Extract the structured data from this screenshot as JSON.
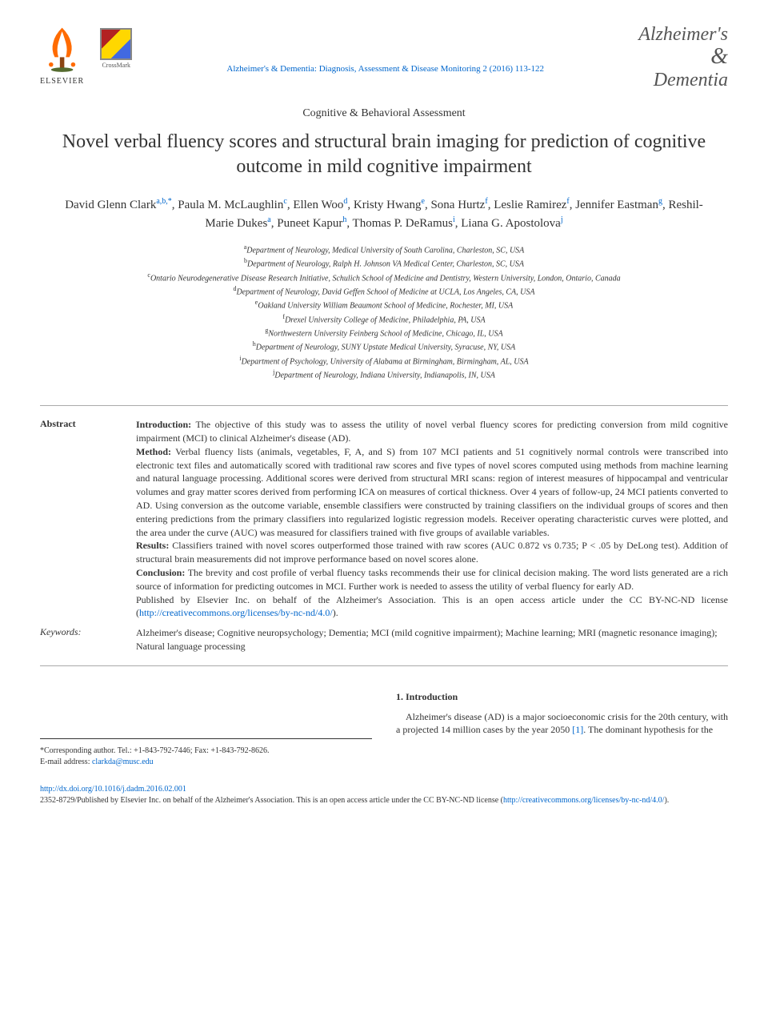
{
  "header": {
    "elsevier_label": "ELSEVIER",
    "crossmark_label": "CrossMark",
    "journal_ref": "Alzheimer's & Dementia: Diagnosis, Assessment & Disease Monitoring 2 (2016) 113-122",
    "journal_logo_line1": "Alzheimer's",
    "journal_logo_amp": "&",
    "journal_logo_line2": "Dementia"
  },
  "section_label": "Cognitive & Behavioral Assessment",
  "title": "Novel verbal fluency scores and structural brain imaging for prediction of cognitive outcome in mild cognitive impairment",
  "authors_html": "David Glenn Clark<sup>a,b,*</sup>, Paula M. McLaughlin<sup>c</sup>, Ellen Woo<sup>d</sup>, Kristy Hwang<sup>e</sup>, Sona Hurtz<sup>f</sup>, Leslie Ramirez<sup>f</sup>, Jennifer Eastman<sup>g</sup>, Reshil-Marie Dukes<sup>a</sup>, Puneet Kapur<sup>h</sup>, Thomas P. DeRamus<sup>i</sup>, Liana G. Apostolova<sup>j</sup>",
  "affiliations": [
    {
      "sup": "a",
      "text": "Department of Neurology, Medical University of South Carolina, Charleston, SC, USA"
    },
    {
      "sup": "b",
      "text": "Department of Neurology, Ralph H. Johnson VA Medical Center, Charleston, SC, USA"
    },
    {
      "sup": "c",
      "text": "Ontario Neurodegenerative Disease Research Initiative, Schulich School of Medicine and Dentistry, Western University, London, Ontario, Canada"
    },
    {
      "sup": "d",
      "text": "Department of Neurology, David Geffen School of Medicine at UCLA, Los Angeles, CA, USA"
    },
    {
      "sup": "e",
      "text": "Oakland University William Beaumont School of Medicine, Rochester, MI, USA"
    },
    {
      "sup": "f",
      "text": "Drexel University College of Medicine, Philadelphia, PA, USA"
    },
    {
      "sup": "g",
      "text": "Northwestern University Feinberg School of Medicine, Chicago, IL, USA"
    },
    {
      "sup": "h",
      "text": "Department of Neurology, SUNY Upstate Medical University, Syracuse, NY, USA"
    },
    {
      "sup": "i",
      "text": "Department of Psychology, University of Alabama at Birmingham, Birmingham, AL, USA"
    },
    {
      "sup": "j",
      "text": "Department of Neurology, Indiana University, Indianapolis, IN, USA"
    }
  ],
  "abstract": {
    "label": "Abstract",
    "introduction_label": "Introduction:",
    "introduction": " The objective of this study was to assess the utility of novel verbal fluency scores for predicting conversion from mild cognitive impairment (MCI) to clinical Alzheimer's disease (AD).",
    "method_label": "Method:",
    "method": " Verbal fluency lists (animals, vegetables, F, A, and S) from 107 MCI patients and 51 cognitively normal controls were transcribed into electronic text files and automatically scored with traditional raw scores and five types of novel scores computed using methods from machine learning and natural language processing. Additional scores were derived from structural MRI scans: region of interest measures of hippocampal and ventricular volumes and gray matter scores derived from performing ICA on measures of cortical thickness. Over 4 years of follow-up, 24 MCI patients converted to AD. Using conversion as the outcome variable, ensemble classifiers were constructed by training classifiers on the individual groups of scores and then entering predictions from the primary classifiers into regularized logistic regression models. Receiver operating characteristic curves were plotted, and the area under the curve (AUC) was measured for classifiers trained with five groups of available variables.",
    "results_label": "Results:",
    "results": " Classifiers trained with novel scores outperformed those trained with raw scores (AUC 0.872 vs 0.735; P < .05 by DeLong test). Addition of structural brain measurements did not improve performance based on novel scores alone.",
    "conclusion_label": "Conclusion:",
    "conclusion": " The brevity and cost profile of verbal fluency tasks recommends their use for clinical decision making. The word lists generated are a rich source of information for predicting outcomes in MCI. Further work is needed to assess the utility of verbal fluency for early AD.",
    "published": "Published by Elsevier Inc. on behalf of the Alzheimer's Association. This is an open access article under the CC BY-NC-ND license (",
    "license_url": "http://creativecommons.org/licenses/by-nc-nd/4.0/",
    "license_close": ")."
  },
  "keywords": {
    "label": "Keywords:",
    "content": "Alzheimer's disease; Cognitive neuropsychology; Dementia; MCI (mild cognitive impairment); Machine learning; MRI (magnetic resonance imaging); Natural language processing"
  },
  "corresponding": {
    "line1": "*Corresponding author. Tel.: +1-843-792-7446; Fax: +1-843-792-8626.",
    "email_label": "E-mail address: ",
    "email": "clarkda@musc.edu"
  },
  "introduction": {
    "heading": "1. Introduction",
    "text_pre": "Alzheimer's disease (AD) is a major socioeconomic crisis for the 20th century, with a projected 14 million cases by the year 2050 ",
    "ref": "[1]",
    "text_post": ". The dominant hypothesis for the"
  },
  "footer": {
    "doi": "http://dx.doi.org/10.1016/j.dadm.2016.02.001",
    "issn_text": "2352-8729/Published by Elsevier Inc. on behalf of the Alzheimer's Association. This is an open access article under the CC BY-NC-ND license (",
    "license_url": "http://creativecommons.org/licenses/by-nc-nd/4.0/",
    "close": ")."
  },
  "colors": {
    "link": "#0066cc",
    "elsevier_orange": "#ff6b00",
    "text": "#333333",
    "rule": "#aaaaaa"
  }
}
